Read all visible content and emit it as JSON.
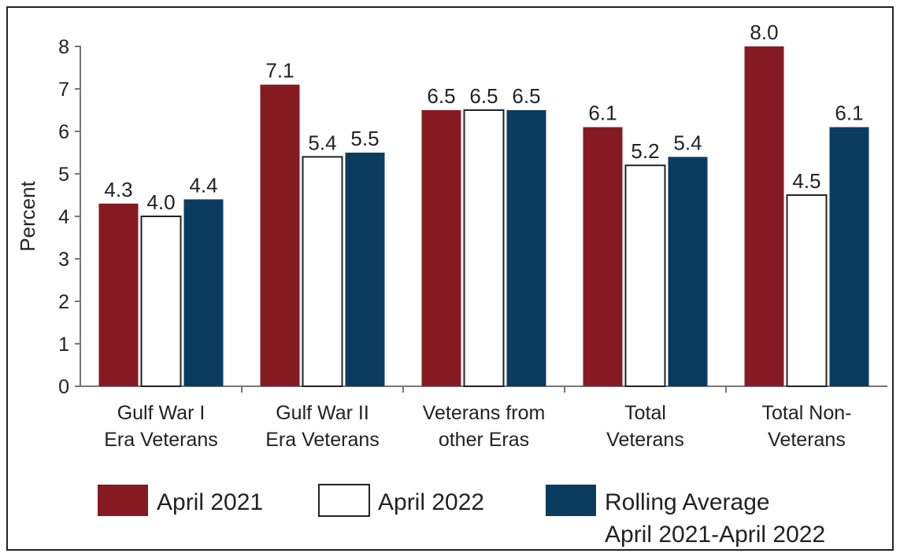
{
  "chart_data": {
    "type": "bar",
    "title": "",
    "xlabel": "",
    "ylabel": "Percent",
    "ylim": [
      0,
      8
    ],
    "yticks": [
      0,
      1,
      2,
      3,
      4,
      5,
      6,
      7,
      8
    ],
    "grid": false,
    "legend_position": "bottom",
    "categories": [
      [
        "Gulf War I",
        "Era Veterans"
      ],
      [
        "Gulf War II",
        "Era Veterans"
      ],
      [
        "Veterans from",
        "other Eras"
      ],
      [
        "Total",
        "Veterans"
      ],
      [
        "Total Non-",
        "Veterans"
      ]
    ],
    "series": [
      {
        "name": "April 2021",
        "color": "#861a22",
        "outline": false,
        "values": [
          4.3,
          7.1,
          6.5,
          6.1,
          8.0
        ],
        "labels": [
          "4.3",
          "7.1",
          "6.5",
          "6.1",
          "8.0"
        ]
      },
      {
        "name": "April 2022",
        "color": "#ffffff",
        "outline": true,
        "values": [
          4.0,
          5.4,
          6.5,
          5.2,
          4.5
        ],
        "labels": [
          "4.0",
          "5.4",
          "6.5",
          "5.2",
          "4.5"
        ]
      },
      {
        "name": [
          "Rolling Average",
          "April 2021-April 2022"
        ],
        "color": "#0c3b60",
        "outline": false,
        "values": [
          4.4,
          5.5,
          6.5,
          5.4,
          6.1
        ],
        "labels": [
          "4.4",
          "5.5",
          "6.5",
          "5.4",
          "6.1"
        ]
      }
    ]
  }
}
